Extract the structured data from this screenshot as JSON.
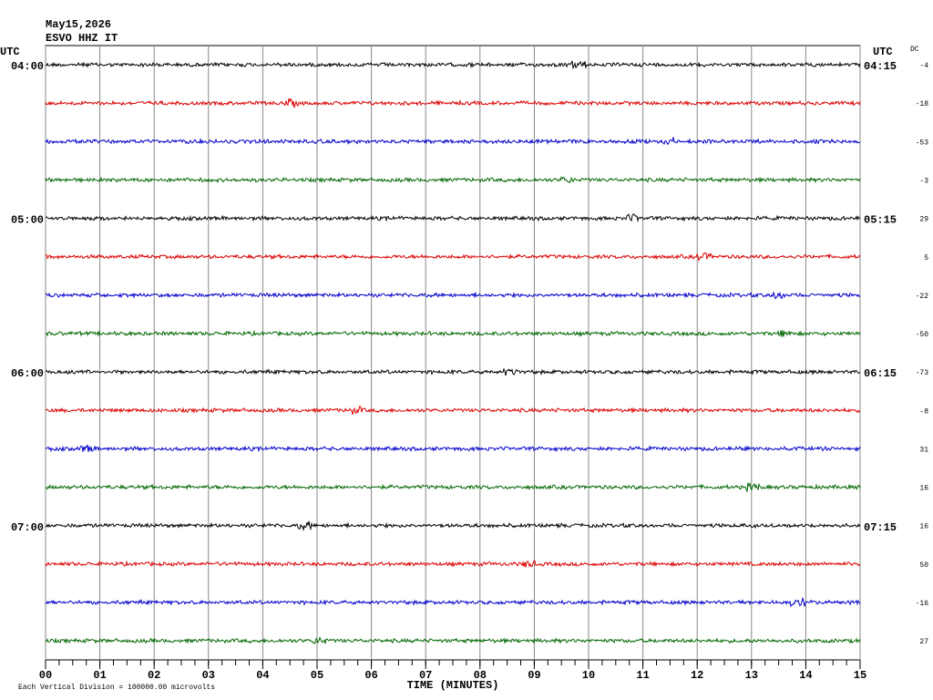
{
  "chart_data": {
    "type": "helicorder",
    "title_lines": [
      "May15,2026",
      "ESVO HHZ IT"
    ],
    "left_axis_label": "UTC",
    "right_axis_label": "UTC",
    "dc_label": "DC",
    "xlabel": "TIME (MINUTES)",
    "footer": "Each Vertical Division = 100000.00 microvolts",
    "xlim": [
      0,
      15
    ],
    "xticks": [
      {
        "value": 0,
        "label": "00"
      },
      {
        "value": 1,
        "label": "01"
      },
      {
        "value": 2,
        "label": "02"
      },
      {
        "value": 3,
        "label": "03"
      },
      {
        "value": 4,
        "label": "04"
      },
      {
        "value": 5,
        "label": "05"
      },
      {
        "value": 6,
        "label": "06"
      },
      {
        "value": 7,
        "label": "07"
      },
      {
        "value": 8,
        "label": "08"
      },
      {
        "value": 9,
        "label": "09"
      },
      {
        "value": 10,
        "label": "10"
      },
      {
        "value": 11,
        "label": "11"
      },
      {
        "value": 12,
        "label": "12"
      },
      {
        "value": 13,
        "label": "13"
      },
      {
        "value": 14,
        "label": "14"
      },
      {
        "value": 15,
        "label": "15"
      }
    ],
    "grid": true,
    "rows": [
      {
        "color": "#000000",
        "left_label": "04:00",
        "right_label": "04:15",
        "dc": -4
      },
      {
        "color": "#dd0000",
        "left_label": null,
        "right_label": null,
        "dc": -18
      },
      {
        "color": "#0000cc",
        "left_label": null,
        "right_label": null,
        "dc": -53
      },
      {
        "color": "#006600",
        "left_label": null,
        "right_label": null,
        "dc": -3
      },
      {
        "color": "#000000",
        "left_label": "05:00",
        "right_label": "05:15",
        "dc": 29
      },
      {
        "color": "#dd0000",
        "left_label": null,
        "right_label": null,
        "dc": 5
      },
      {
        "color": "#0000cc",
        "left_label": null,
        "right_label": null,
        "dc": -22
      },
      {
        "color": "#006600",
        "left_label": null,
        "right_label": null,
        "dc": -50
      },
      {
        "color": "#000000",
        "left_label": "06:00",
        "right_label": "06:15",
        "dc": -73
      },
      {
        "color": "#dd0000",
        "left_label": null,
        "right_label": null,
        "dc": -8
      },
      {
        "color": "#0000cc",
        "left_label": null,
        "right_label": null,
        "dc": 31
      },
      {
        "color": "#006600",
        "left_label": null,
        "right_label": null,
        "dc": 16
      },
      {
        "color": "#000000",
        "left_label": "07:00",
        "right_label": "07:15",
        "dc": 16
      },
      {
        "color": "#dd0000",
        "left_label": null,
        "right_label": null,
        "dc": 50
      },
      {
        "color": "#0000cc",
        "left_label": null,
        "right_label": null,
        "dc": -16
      },
      {
        "color": "#006600",
        "left_label": null,
        "right_label": null,
        "dc": 27
      }
    ]
  }
}
